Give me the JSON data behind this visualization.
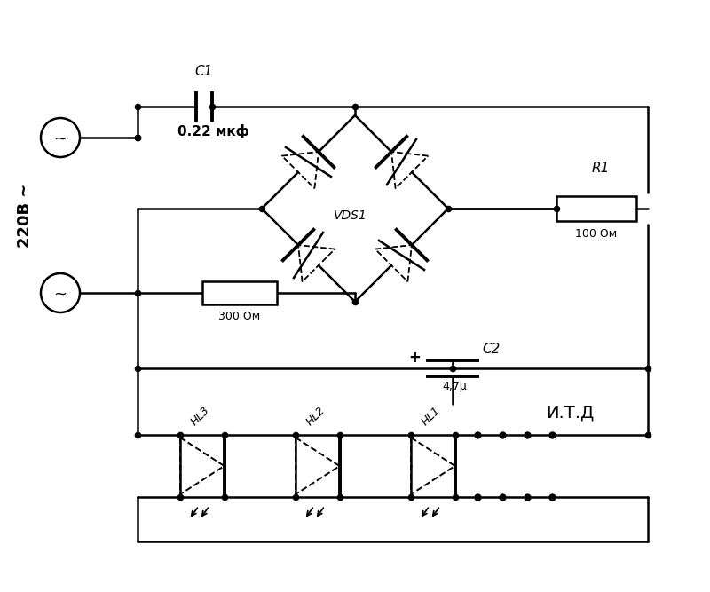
{
  "bg_color": "#ffffff",
  "line_color": "#000000",
  "lw": 1.8,
  "dot_r": 4.5,
  "labels": {
    "C1": "C1",
    "C1_val": "0.22 мкф",
    "R1": "R1",
    "R1_val": "100 Ом",
    "R2_val": "300 Ом",
    "C2": "C2",
    "C2_val": "4,7μ",
    "VDS": "VDS1",
    "HL1": "HL1",
    "HL2": "HL2",
    "HL3": "HL3",
    "source": "220В ~",
    "itd": "И.Т.Д"
  }
}
